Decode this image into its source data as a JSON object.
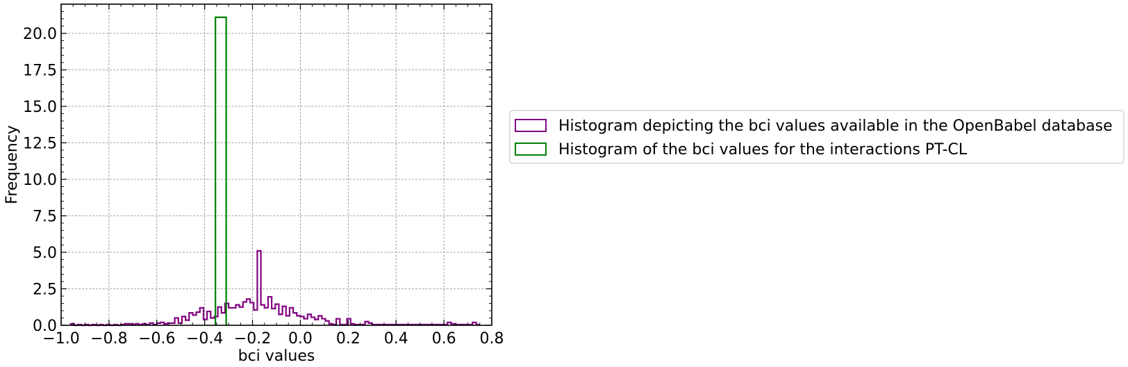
{
  "chart_data": {
    "type": "histogram",
    "title": "",
    "xlabel": "bci values",
    "ylabel": "Frequency",
    "xlim": [
      -1.0,
      0.8
    ],
    "ylim": [
      0.0,
      22.0
    ],
    "xticks": [
      -1.0,
      -0.8,
      -0.6,
      -0.4,
      -0.2,
      0.0,
      0.2,
      0.4,
      0.6,
      0.8
    ],
    "xtick_labels": [
      "−1.0",
      "−0.8",
      "−0.6",
      "−0.4",
      "−0.2",
      "0.0",
      "0.2",
      "0.4",
      "0.6",
      "0.8"
    ],
    "yticks": [
      0.0,
      2.5,
      5.0,
      7.5,
      10.0,
      12.5,
      15.0,
      17.5,
      20.0
    ],
    "ytick_labels": [
      "0.0",
      "2.5",
      "5.0",
      "7.5",
      "10.0",
      "12.5",
      "15.0",
      "17.5",
      "20.0"
    ],
    "grid": true,
    "legend_placement": "outside-right",
    "series": [
      {
        "name": "Histogram depicting the bci values available in the OpenBabel database",
        "color": "#800080",
        "histtype": "step",
        "bins": [
          [
            -0.96,
            -0.945,
            0.1
          ],
          [
            -0.945,
            -0.93,
            0.0
          ],
          [
            -0.93,
            -0.915,
            0.05
          ],
          [
            -0.915,
            -0.9,
            0.0
          ],
          [
            -0.9,
            -0.885,
            0.05
          ],
          [
            -0.885,
            -0.87,
            0.0
          ],
          [
            -0.87,
            -0.855,
            0.05
          ],
          [
            -0.855,
            -0.84,
            0.0
          ],
          [
            -0.84,
            -0.825,
            0.05
          ],
          [
            -0.825,
            -0.81,
            0.0
          ],
          [
            -0.81,
            -0.795,
            0.05
          ],
          [
            -0.795,
            -0.78,
            0.0
          ],
          [
            -0.78,
            -0.765,
            0.05
          ],
          [
            -0.765,
            -0.75,
            0.0
          ],
          [
            -0.75,
            -0.735,
            0.05
          ],
          [
            -0.735,
            -0.72,
            0.1
          ],
          [
            -0.72,
            -0.705,
            0.1
          ],
          [
            -0.705,
            -0.69,
            0.05
          ],
          [
            -0.69,
            -0.675,
            0.1
          ],
          [
            -0.675,
            -0.66,
            0.05
          ],
          [
            -0.66,
            -0.645,
            0.1
          ],
          [
            -0.645,
            -0.63,
            0.05
          ],
          [
            -0.63,
            -0.615,
            0.15
          ],
          [
            -0.615,
            -0.6,
            0.05
          ],
          [
            -0.6,
            -0.585,
            0.15
          ],
          [
            -0.585,
            -0.57,
            0.2
          ],
          [
            -0.57,
            -0.555,
            0.1
          ],
          [
            -0.555,
            -0.54,
            0.15
          ],
          [
            -0.54,
            -0.525,
            0.15
          ],
          [
            -0.525,
            -0.51,
            0.5
          ],
          [
            -0.51,
            -0.495,
            0.15
          ],
          [
            -0.495,
            -0.48,
            0.6
          ],
          [
            -0.48,
            -0.465,
            0.35
          ],
          [
            -0.465,
            -0.45,
            0.85
          ],
          [
            -0.45,
            -0.435,
            0.7
          ],
          [
            -0.435,
            -0.42,
            0.9
          ],
          [
            -0.42,
            -0.405,
            1.2
          ],
          [
            -0.405,
            -0.39,
            0.4
          ],
          [
            -0.39,
            -0.375,
            0.95
          ],
          [
            -0.375,
            -0.36,
            0.5
          ],
          [
            -0.36,
            -0.345,
            0.6
          ],
          [
            -0.345,
            -0.33,
            1.25
          ],
          [
            -0.33,
            -0.315,
            0.85
          ],
          [
            -0.315,
            -0.3,
            1.5
          ],
          [
            -0.3,
            -0.285,
            1.2
          ],
          [
            -0.285,
            -0.27,
            1.2
          ],
          [
            -0.27,
            -0.255,
            1.4
          ],
          [
            -0.255,
            -0.24,
            1.25
          ],
          [
            -0.24,
            -0.225,
            1.6
          ],
          [
            -0.225,
            -0.21,
            1.8
          ],
          [
            -0.21,
            -0.195,
            1.55
          ],
          [
            -0.195,
            -0.18,
            1.05
          ],
          [
            -0.18,
            -0.165,
            5.1
          ],
          [
            -0.165,
            -0.15,
            1.4
          ],
          [
            -0.15,
            -0.135,
            1.2
          ],
          [
            -0.135,
            -0.12,
            1.95
          ],
          [
            -0.12,
            -0.105,
            1.15
          ],
          [
            -0.105,
            -0.09,
            1.45
          ],
          [
            -0.09,
            -0.075,
            0.75
          ],
          [
            -0.075,
            -0.06,
            1.3
          ],
          [
            -0.06,
            -0.045,
            0.65
          ],
          [
            -0.045,
            -0.03,
            1.2
          ],
          [
            -0.03,
            -0.015,
            0.85
          ],
          [
            -0.015,
            0.0,
            0.65
          ],
          [
            0.0,
            0.015,
            0.6
          ],
          [
            0.015,
            0.03,
            0.45
          ],
          [
            0.03,
            0.045,
            0.75
          ],
          [
            0.045,
            0.06,
            0.55
          ],
          [
            0.06,
            0.075,
            0.4
          ],
          [
            0.075,
            0.09,
            0.65
          ],
          [
            0.09,
            0.105,
            0.45
          ],
          [
            0.105,
            0.12,
            0.3
          ],
          [
            0.12,
            0.135,
            0.1
          ],
          [
            0.135,
            0.15,
            0.05
          ],
          [
            0.15,
            0.165,
            0.45
          ],
          [
            0.165,
            0.18,
            0.05
          ],
          [
            0.18,
            0.195,
            0.05
          ],
          [
            0.195,
            0.21,
            0.45
          ],
          [
            0.21,
            0.225,
            0.1
          ],
          [
            0.225,
            0.24,
            0.05
          ],
          [
            0.24,
            0.255,
            0.05
          ],
          [
            0.255,
            0.27,
            0.05
          ],
          [
            0.27,
            0.285,
            0.25
          ],
          [
            0.285,
            0.3,
            0.15
          ],
          [
            0.3,
            0.315,
            0.05
          ],
          [
            0.315,
            0.33,
            0.05
          ],
          [
            0.33,
            0.345,
            0.05
          ],
          [
            0.345,
            0.36,
            0.05
          ],
          [
            0.36,
            0.375,
            0.05
          ],
          [
            0.375,
            0.39,
            0.05
          ],
          [
            0.39,
            0.405,
            0.05
          ],
          [
            0.405,
            0.42,
            0.05
          ],
          [
            0.42,
            0.435,
            0.05
          ],
          [
            0.435,
            0.45,
            0.05
          ],
          [
            0.45,
            0.465,
            0.05
          ],
          [
            0.465,
            0.48,
            0.05
          ],
          [
            0.48,
            0.495,
            0.05
          ],
          [
            0.495,
            0.51,
            0.05
          ],
          [
            0.51,
            0.525,
            0.05
          ],
          [
            0.525,
            0.54,
            0.05
          ],
          [
            0.54,
            0.555,
            0.05
          ],
          [
            0.555,
            0.57,
            0.05
          ],
          [
            0.57,
            0.585,
            0.05
          ],
          [
            0.585,
            0.6,
            0.05
          ],
          [
            0.6,
            0.615,
            0.05
          ],
          [
            0.615,
            0.63,
            0.2
          ],
          [
            0.63,
            0.645,
            0.1
          ],
          [
            0.645,
            0.66,
            0.05
          ],
          [
            0.66,
            0.675,
            0.05
          ],
          [
            0.675,
            0.69,
            0.05
          ],
          [
            0.69,
            0.705,
            0.05
          ],
          [
            0.705,
            0.72,
            0.05
          ],
          [
            0.72,
            0.735,
            0.2
          ],
          [
            0.735,
            0.745,
            0.05
          ]
        ]
      },
      {
        "name": "Histogram of the bci values for the interactions PT-CL",
        "color": "#008000",
        "histtype": "step",
        "bins": [
          [
            -0.355,
            -0.31,
            21.1
          ]
        ]
      }
    ]
  }
}
